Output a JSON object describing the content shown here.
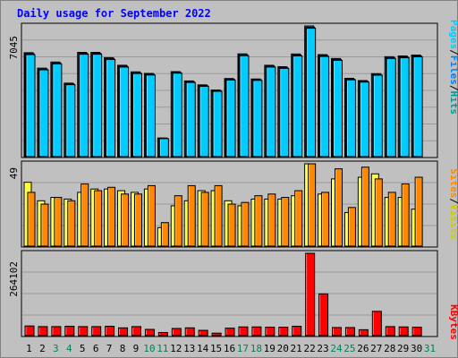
{
  "title": "Daily usage for September 2022",
  "colors": {
    "background": "#c0c0c0",
    "panel": "#c0c0c0",
    "hits": "#00aaee",
    "files": "#0080ff",
    "pages": "#00ccff",
    "visits": "#ffff33",
    "sites": "#ff8800",
    "kbytes": "#ff0000",
    "weekday_label": "#000000",
    "weekend_label": "#00805c",
    "title": "#0000ff"
  },
  "chart_data": [
    {
      "type": "bar",
      "name": "hits-panel",
      "categories": [
        "1",
        "2",
        "3",
        "4",
        "5",
        "6",
        "7",
        "8",
        "9",
        "10",
        "11",
        "12",
        "13",
        "14",
        "15",
        "16",
        "17",
        "18",
        "19",
        "20",
        "21",
        "22",
        "23",
        "24",
        "25",
        "26",
        "27",
        "28",
        "29",
        "30",
        "31"
      ],
      "ymax_label": "7045",
      "ymax": 7045,
      "legend": [
        "Pages",
        "Files",
        "Hits"
      ],
      "series": [
        {
          "name": "Hits",
          "values": [
            5604,
            4770,
            5101,
            3962,
            5620,
            5620,
            5338,
            4926,
            4572,
            4486,
            1007,
            4583,
            4081,
            3869,
            3591,
            4212,
            5541,
            4187,
            4925,
            4847,
            5535,
            7045,
            5499,
            5291,
            4223,
            4100,
            4475,
            5388,
            5427,
            5477,
            null
          ]
        },
        {
          "name": "Files",
          "values": [
            5550,
            4720,
            5050,
            3920,
            5570,
            5570,
            5290,
            4880,
            4520,
            4440,
            990,
            4540,
            4040,
            3830,
            3560,
            4170,
            5490,
            4150,
            4880,
            4800,
            5480,
            6980,
            5450,
            5240,
            4180,
            4060,
            4430,
            5340,
            5380,
            5430,
            null
          ]
        },
        {
          "name": "Pages",
          "values": [
            5500,
            4680,
            5000,
            3880,
            5520,
            5520,
            5240,
            4830,
            4480,
            4400,
            970,
            4500,
            4000,
            3790,
            3520,
            4130,
            5440,
            4110,
            4830,
            4760,
            5430,
            6920,
            5400,
            5190,
            4140,
            4020,
            4390,
            5290,
            5330,
            5380,
            null
          ]
        }
      ]
    },
    {
      "type": "bar",
      "name": "visits-panel",
      "categories": [
        "1",
        "2",
        "3",
        "4",
        "5",
        "6",
        "7",
        "8",
        "9",
        "10",
        "11",
        "12",
        "13",
        "14",
        "15",
        "16",
        "17",
        "18",
        "19",
        "20",
        "21",
        "22",
        "23",
        "24",
        "25",
        "26",
        "27",
        "28",
        "29",
        "30",
        "31"
      ],
      "ymax_label": "49",
      "ymax": 49,
      "legend": [
        "Sites",
        "Visits"
      ],
      "series": [
        {
          "name": "Visits",
          "values": [
            38,
            27,
            29,
            28,
            32,
            34,
            34,
            33,
            32,
            34,
            11,
            24,
            27,
            33,
            33,
            27,
            24,
            28,
            28,
            28,
            30,
            49,
            31,
            40,
            20,
            41,
            43,
            29,
            29,
            22,
            null
          ]
        },
        {
          "name": "Sites",
          "values": [
            32,
            25,
            29,
            27,
            37,
            33,
            35,
            31,
            31,
            36,
            14,
            30,
            36,
            32,
            36,
            25,
            26,
            30,
            31,
            29,
            33,
            49,
            32,
            46,
            23,
            47,
            40,
            32,
            37,
            41,
            null
          ]
        }
      ]
    },
    {
      "type": "bar",
      "name": "kbytes-panel",
      "categories": [
        "1",
        "2",
        "3",
        "4",
        "5",
        "6",
        "7",
        "8",
        "9",
        "10",
        "11",
        "12",
        "13",
        "14",
        "15",
        "16",
        "17",
        "18",
        "19",
        "20",
        "21",
        "22",
        "23",
        "24",
        "25",
        "26",
        "27",
        "28",
        "29",
        "30",
        "31"
      ],
      "ymax_label": "264102",
      "ymax": 264102,
      "legend": [
        "KBytes"
      ],
      "series": [
        {
          "name": "KBytes",
          "values": [
            31000,
            29000,
            29000,
            30000,
            29000,
            29000,
            30000,
            25000,
            29000,
            20000,
            10000,
            23000,
            25000,
            17000,
            8000,
            24000,
            28000,
            28000,
            27000,
            27000,
            30000,
            264102,
            134000,
            26000,
            26000,
            19000,
            78000,
            29000,
            28000,
            27000,
            null
          ]
        }
      ]
    }
  ],
  "x_axis": {
    "labels": [
      "1",
      "2",
      "3",
      "4",
      "5",
      "6",
      "7",
      "8",
      "9",
      "10",
      "11",
      "12",
      "13",
      "14",
      "15",
      "16",
      "17",
      "18",
      "19",
      "20",
      "21",
      "22",
      "23",
      "24",
      "25",
      "26",
      "27",
      "28",
      "29",
      "30",
      "31"
    ],
    "weekend_days": [
      "3",
      "4",
      "10",
      "11",
      "17",
      "18",
      "24",
      "25",
      "31"
    ]
  }
}
